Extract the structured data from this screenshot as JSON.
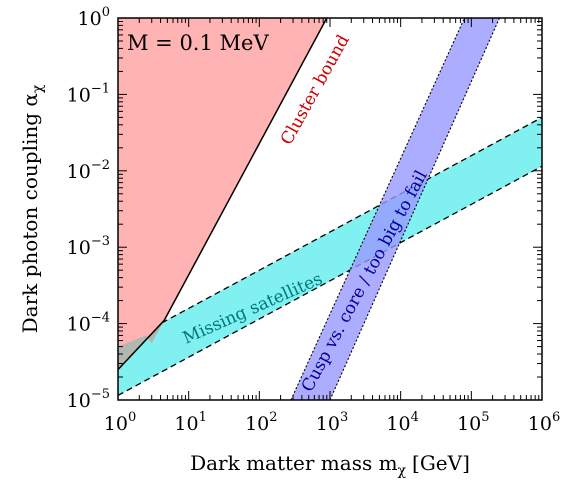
{
  "chart_data": {
    "type": "area",
    "xlabel_main": "Dark matter mass m",
    "xlabel_sub": "χ",
    "xlabel_unit": "[GeV]",
    "ylabel_main": "Dark photon coupling α",
    "ylabel_sub": "χ",
    "x_scale": "log",
    "y_scale": "log",
    "xlim": [
      1,
      1000000
    ],
    "ylim": [
      1e-05,
      1
    ],
    "x_ticks": [
      {
        "value": 1,
        "base": "10",
        "exp": "0"
      },
      {
        "value": 10,
        "base": "10",
        "exp": "1"
      },
      {
        "value": 100,
        "base": "10",
        "exp": "2"
      },
      {
        "value": 1000,
        "base": "10",
        "exp": "3"
      },
      {
        "value": 10000,
        "base": "10",
        "exp": "4"
      },
      {
        "value": 100000,
        "base": "10",
        "exp": "5"
      },
      {
        "value": 1000000,
        "base": "10",
        "exp": "6"
      }
    ],
    "y_ticks": [
      {
        "value": 1e-05,
        "base": "10",
        "exp": "−5"
      },
      {
        "value": 0.0001,
        "base": "10",
        "exp": "−4"
      },
      {
        "value": 0.001,
        "base": "10",
        "exp": "−3"
      },
      {
        "value": 0.01,
        "base": "10",
        "exp": "−2"
      },
      {
        "value": 0.1,
        "base": "10",
        "exp": "−1"
      },
      {
        "value": 1,
        "base": "10",
        "exp": "0"
      }
    ],
    "grid": false,
    "regions": [
      {
        "label": "Cluster bound",
        "color": "#ffb3b3",
        "label_color": "#cc0000",
        "points": [
          [
            1,
            2.5e-05
          ],
          [
            1,
            1
          ],
          [
            900,
            1
          ],
          [
            4.5,
            0.00011
          ],
          [
            1,
            2.5e-05
          ]
        ]
      },
      {
        "label": "",
        "color": "#b0b8b0",
        "points": [
          [
            1,
            2.5e-05
          ],
          [
            1,
            5e-05
          ],
          [
            2.5,
            7e-05
          ],
          [
            3,
            5.5e-05
          ],
          [
            4.5,
            0.00011
          ],
          [
            1,
            2.5e-05
          ]
        ]
      },
      {
        "label": "Missing satellites",
        "color": "#80f0f0",
        "label_color": "#007878",
        "upper": [
          [
            1,
            5e-05
          ],
          [
            1000000,
            0.05
          ]
        ],
        "lower": [
          [
            1,
            1.15e-05
          ],
          [
            1000000,
            0.0115
          ]
        ]
      },
      {
        "label": "Cusp vs. core / too big to fail",
        "color": "#aaaaff",
        "label_color": "#000099",
        "left": [
          [
            280,
            1e-05
          ],
          [
            80000,
            1
          ]
        ],
        "right": [
          [
            1000,
            1e-05
          ],
          [
            250000,
            1
          ]
        ]
      }
    ],
    "annotations": [
      {
        "text": "M = 0.1 MeV"
      }
    ]
  }
}
